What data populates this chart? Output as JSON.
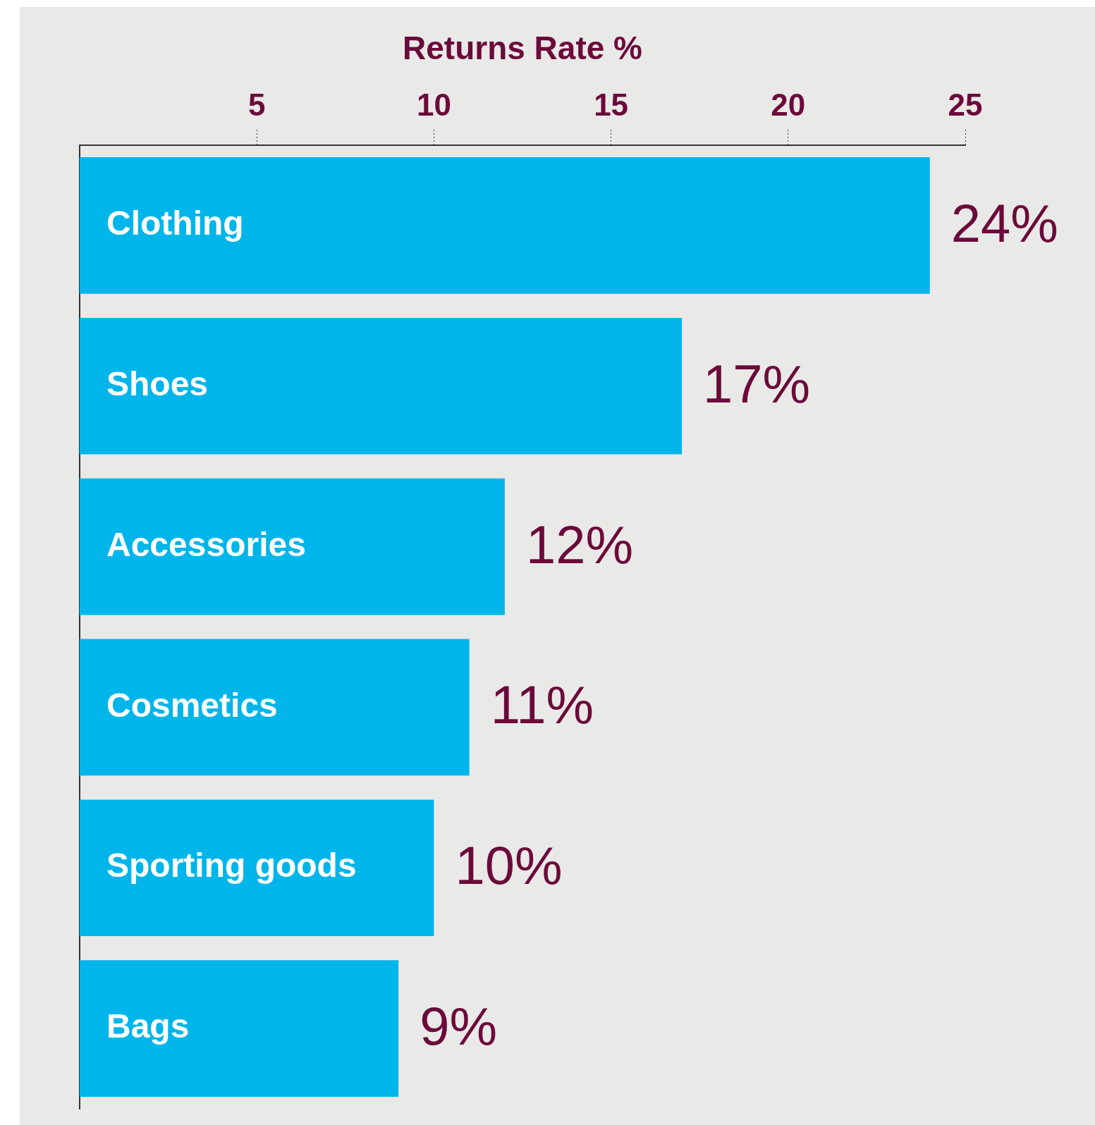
{
  "chart_data": {
    "type": "bar",
    "orientation": "horizontal",
    "xlabel": "Returns Rate %",
    "categories": [
      "Clothing",
      "Shoes",
      "Accessories",
      "Cosmetics",
      "Sporting goods",
      "Bags"
    ],
    "values": [
      24,
      17,
      12,
      11,
      10,
      9
    ],
    "color": "#00b5e9",
    "xlim": [
      0,
      25
    ],
    "xticks": [
      5,
      10,
      15,
      20,
      25
    ],
    "value_labels": [
      "24%",
      "17%",
      "12%",
      "11%",
      "10%",
      "9%"
    ]
  }
}
